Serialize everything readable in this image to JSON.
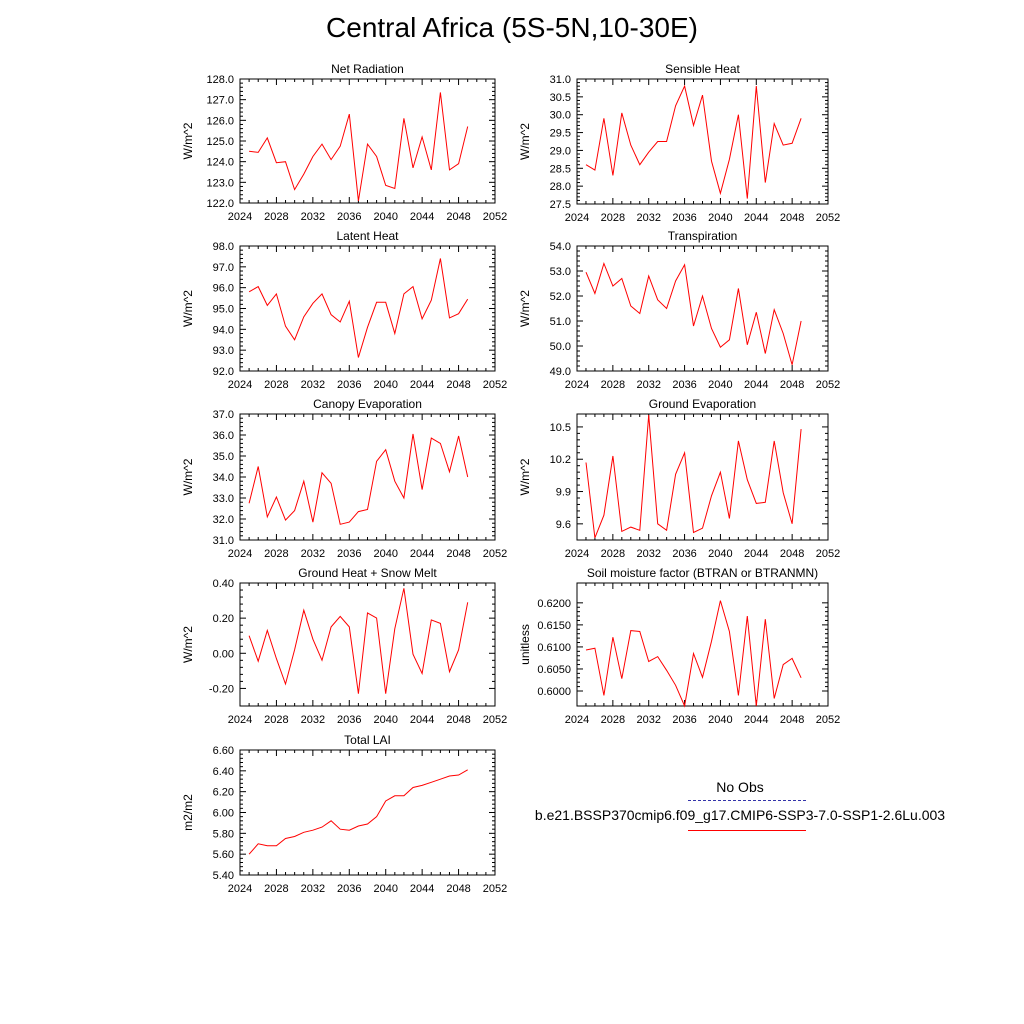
{
  "title": "Central Africa (5S-5N,10-30E)",
  "colors": {
    "model_line": "#ff0000",
    "obs_line": "#3333aa",
    "axis": "#000000"
  },
  "legend": {
    "obs_label": "No Obs",
    "model_label": "b.e21.BSSP370cmip6.f09_g17.CMIP6-SSP3-7.0-SSP1-2.6Lu.003"
  },
  "chart_data": [
    {
      "type": "line",
      "title": "Net Radiation",
      "ylabel": "W/m^2",
      "xlim": [
        2024,
        2052
      ],
      "ylim": [
        122.0,
        128.0
      ],
      "xticks": [
        "2024",
        "2028",
        "2032",
        "2036",
        "2040",
        "2044",
        "2048",
        "2052"
      ],
      "yticks": [
        "122.0",
        "123.0",
        "124.0",
        "125.0",
        "126.0",
        "127.0",
        "128.0"
      ],
      "x": [
        2025,
        2026,
        2027,
        2028,
        2029,
        2030,
        2031,
        2032,
        2033,
        2034,
        2035,
        2036,
        2037,
        2038,
        2039,
        2040,
        2041,
        2042,
        2043,
        2044,
        2045,
        2046,
        2047,
        2048,
        2049
      ],
      "y": [
        124.5,
        124.45,
        125.15,
        123.95,
        124.0,
        122.65,
        123.4,
        124.25,
        124.85,
        124.1,
        124.75,
        126.3,
        122.1,
        124.85,
        124.25,
        122.85,
        122.7,
        126.1,
        123.7,
        125.2,
        123.6,
        127.35,
        123.6,
        123.9,
        125.7
      ]
    },
    {
      "type": "line",
      "title": "Sensible Heat",
      "ylabel": "W/m^2",
      "xlim": [
        2024,
        2052
      ],
      "ylim": [
        27.5,
        31.0
      ],
      "xticks": [
        "2024",
        "2028",
        "2032",
        "2036",
        "2040",
        "2044",
        "2048",
        "2052"
      ],
      "yticks": [
        "27.5",
        "28.0",
        "28.5",
        "29.0",
        "29.5",
        "30.0",
        "30.5",
        "31.0"
      ],
      "x": [
        2025,
        2026,
        2027,
        2028,
        2029,
        2030,
        2031,
        2032,
        2033,
        2034,
        2035,
        2036,
        2037,
        2038,
        2039,
        2040,
        2041,
        2042,
        2043,
        2044,
        2045,
        2046,
        2047,
        2048,
        2049
      ],
      "y": [
        28.6,
        28.45,
        29.9,
        28.3,
        30.05,
        29.15,
        28.6,
        28.95,
        29.25,
        29.25,
        30.25,
        30.8,
        29.7,
        30.55,
        28.7,
        27.8,
        28.75,
        30.0,
        27.65,
        30.8,
        28.1,
        29.75,
        29.15,
        29.2,
        29.9
      ]
    },
    {
      "type": "line",
      "title": "Latent Heat",
      "ylabel": "W/m^2",
      "xlim": [
        2024,
        2052
      ],
      "ylim": [
        92.0,
        98.0
      ],
      "xticks": [
        "2024",
        "2028",
        "2032",
        "2036",
        "2040",
        "2044",
        "2048",
        "2052"
      ],
      "yticks": [
        "92.0",
        "93.0",
        "94.0",
        "95.0",
        "96.0",
        "97.0",
        "98.0"
      ],
      "x": [
        2025,
        2026,
        2027,
        2028,
        2029,
        2030,
        2031,
        2032,
        2033,
        2034,
        2035,
        2036,
        2037,
        2038,
        2039,
        2040,
        2041,
        2042,
        2043,
        2044,
        2045,
        2046,
        2047,
        2048,
        2049
      ],
      "y": [
        95.8,
        96.05,
        95.15,
        95.7,
        94.15,
        93.5,
        94.6,
        95.25,
        95.7,
        94.7,
        94.35,
        95.35,
        92.65,
        94.1,
        95.3,
        95.3,
        93.8,
        95.7,
        96.05,
        94.5,
        95.4,
        97.4,
        94.55,
        94.75,
        95.45
      ]
    },
    {
      "type": "line",
      "title": "Transpiration",
      "ylabel": "W/m^2",
      "xlim": [
        2024,
        2052
      ],
      "ylim": [
        49.0,
        54.0
      ],
      "xticks": [
        "2024",
        "2028",
        "2032",
        "2036",
        "2040",
        "2044",
        "2048",
        "2052"
      ],
      "yticks": [
        "49.0",
        "50.0",
        "51.0",
        "52.0",
        "53.0",
        "54.0"
      ],
      "x": [
        2025,
        2026,
        2027,
        2028,
        2029,
        2030,
        2031,
        2032,
        2033,
        2034,
        2035,
        2036,
        2037,
        2038,
        2039,
        2040,
        2041,
        2042,
        2043,
        2044,
        2045,
        2046,
        2047,
        2048,
        2049
      ],
      "y": [
        52.95,
        52.1,
        53.3,
        52.4,
        52.7,
        51.6,
        51.3,
        52.8,
        51.85,
        51.5,
        52.6,
        53.25,
        50.8,
        52.0,
        50.7,
        49.95,
        50.25,
        52.3,
        50.05,
        51.35,
        49.7,
        51.45,
        50.5,
        49.25,
        51.0
      ]
    },
    {
      "type": "line",
      "title": "Canopy Evaporation",
      "ylabel": "W/m^2",
      "xlim": [
        2024,
        2052
      ],
      "ylim": [
        31.0,
        37.0
      ],
      "xticks": [
        "2024",
        "2028",
        "2032",
        "2036",
        "2040",
        "2044",
        "2048",
        "2052"
      ],
      "yticks": [
        "31.0",
        "32.0",
        "33.0",
        "34.0",
        "35.0",
        "36.0",
        "37.0"
      ],
      "x": [
        2025,
        2026,
        2027,
        2028,
        2029,
        2030,
        2031,
        2032,
        2033,
        2034,
        2035,
        2036,
        2037,
        2038,
        2039,
        2040,
        2041,
        2042,
        2043,
        2044,
        2045,
        2046,
        2047,
        2048,
        2049
      ],
      "y": [
        32.75,
        34.5,
        32.1,
        33.05,
        31.95,
        32.4,
        33.8,
        31.85,
        34.2,
        33.7,
        31.75,
        31.85,
        32.35,
        32.45,
        34.75,
        35.3,
        33.8,
        33.0,
        36.05,
        33.4,
        35.85,
        35.6,
        34.25,
        35.95,
        34.0
      ]
    },
    {
      "type": "line",
      "title": "Ground Evaporation",
      "ylabel": "W/m^2",
      "xlim": [
        2024,
        2052
      ],
      "ylim": [
        9.45,
        10.62
      ],
      "xticks": [
        "2024",
        "2028",
        "2032",
        "2036",
        "2040",
        "2044",
        "2048",
        "2052"
      ],
      "yticks": [
        "9.6",
        "9.9",
        "10.2",
        "10.5"
      ],
      "x": [
        2025,
        2026,
        2027,
        2028,
        2029,
        2030,
        2031,
        2032,
        2033,
        2034,
        2035,
        2036,
        2037,
        2038,
        2039,
        2040,
        2041,
        2042,
        2043,
        2044,
        2045,
        2046,
        2047,
        2048,
        2049
      ],
      "y": [
        10.17,
        9.47,
        9.68,
        10.23,
        9.53,
        9.57,
        9.54,
        10.61,
        9.6,
        9.54,
        10.06,
        10.26,
        9.52,
        9.56,
        9.86,
        10.08,
        9.65,
        10.37,
        10.01,
        9.79,
        9.8,
        10.37,
        9.89,
        9.6,
        10.48
      ]
    },
    {
      "type": "line",
      "title": "Ground Heat + Snow Melt",
      "ylabel": "W/m^2",
      "xlim": [
        2024,
        2052
      ],
      "ylim": [
        -0.3,
        0.4
      ],
      "xticks": [
        "2024",
        "2028",
        "2032",
        "2036",
        "2040",
        "2044",
        "2048",
        "2052"
      ],
      "yticks": [
        "-0.20",
        "0.00",
        "0.20",
        "0.40"
      ],
      "x": [
        2025,
        2026,
        2027,
        2028,
        2029,
        2030,
        2031,
        2032,
        2033,
        2034,
        2035,
        2036,
        2037,
        2038,
        2039,
        2040,
        2041,
        2042,
        2043,
        2044,
        2045,
        2046,
        2047,
        2048,
        2049
      ],
      "y": [
        0.1,
        -0.045,
        0.13,
        -0.03,
        -0.175,
        0.02,
        0.245,
        0.08,
        -0.04,
        0.15,
        0.21,
        0.15,
        -0.23,
        0.23,
        0.2,
        -0.23,
        0.14,
        0.37,
        -0.005,
        -0.115,
        0.19,
        0.17,
        -0.105,
        0.02,
        0.29
      ]
    },
    {
      "type": "line",
      "title": "Soil moisture factor (BTRAN or BTRANMN)",
      "ylabel": "unitless",
      "xlim": [
        2024,
        2052
      ],
      "ylim": [
        0.5966,
        0.6245
      ],
      "xticks": [
        "2024",
        "2028",
        "2032",
        "2036",
        "2040",
        "2044",
        "2048",
        "2052"
      ],
      "yticks": [
        "0.6000",
        "0.6050",
        "0.6100",
        "0.6150",
        "0.6200"
      ],
      "x": [
        2025,
        2026,
        2027,
        2028,
        2029,
        2030,
        2031,
        2032,
        2033,
        2034,
        2035,
        2036,
        2037,
        2038,
        2039,
        2040,
        2041,
        2042,
        2043,
        2044,
        2045,
        2046,
        2047,
        2048,
        2049
      ],
      "y": [
        0.6093,
        0.6097,
        0.599,
        0.6122,
        0.6028,
        0.6137,
        0.6135,
        0.6067,
        0.6078,
        0.6047,
        0.6013,
        0.5966,
        0.6085,
        0.6031,
        0.6113,
        0.6205,
        0.6135,
        0.599,
        0.617,
        0.5966,
        0.6163,
        0.5983,
        0.606,
        0.6074,
        0.603
      ]
    },
    {
      "type": "line",
      "title": "Total LAI",
      "ylabel": "m2/m2",
      "xlim": [
        2024,
        2052
      ],
      "ylim": [
        5.4,
        6.6
      ],
      "xticks": [
        "2024",
        "2028",
        "2032",
        "2036",
        "2040",
        "2044",
        "2048",
        "2052"
      ],
      "yticks": [
        "5.40",
        "5.60",
        "5.80",
        "6.00",
        "6.20",
        "6.40",
        "6.60"
      ],
      "x": [
        2025,
        2026,
        2027,
        2028,
        2029,
        2030,
        2031,
        2032,
        2033,
        2034,
        2035,
        2036,
        2037,
        2038,
        2039,
        2040,
        2041,
        2042,
        2043,
        2044,
        2045,
        2046,
        2047,
        2048,
        2049
      ],
      "y": [
        5.6,
        5.7,
        5.68,
        5.68,
        5.75,
        5.77,
        5.81,
        5.83,
        5.86,
        5.92,
        5.84,
        5.83,
        5.87,
        5.89,
        5.96,
        6.11,
        6.16,
        6.16,
        6.24,
        6.26,
        6.29,
        6.32,
        6.35,
        6.36,
        6.41
      ]
    }
  ]
}
